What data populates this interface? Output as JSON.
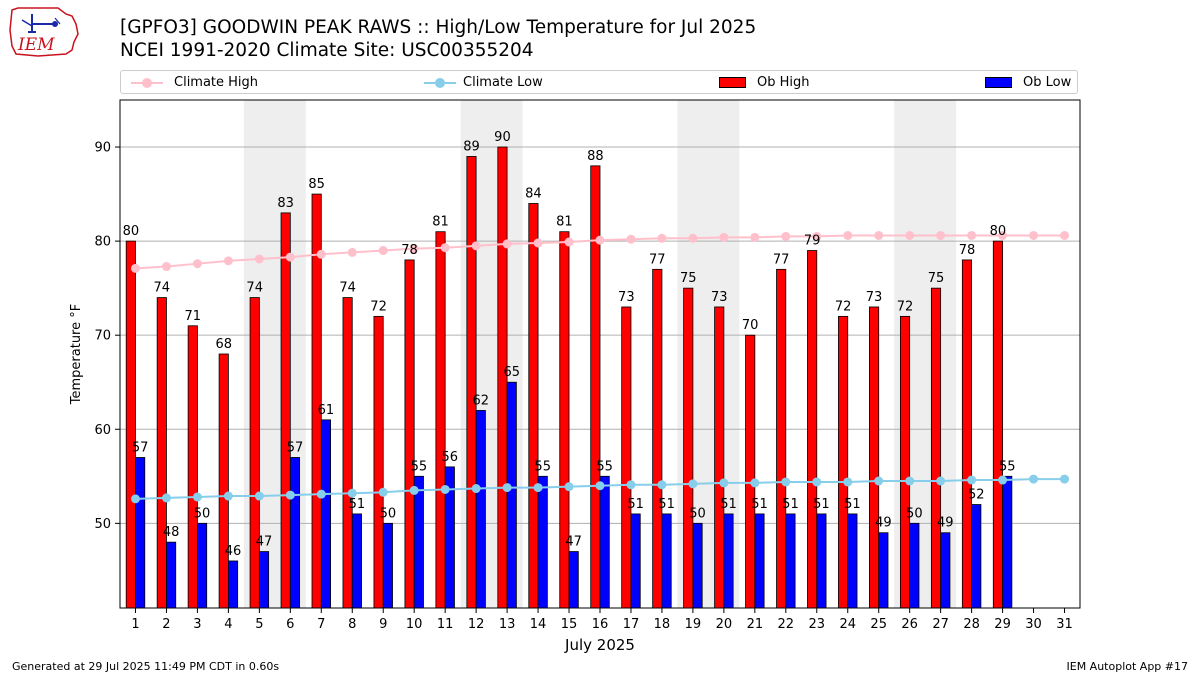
{
  "header": {
    "title_line1": "[GPFO3] GOODWIN PEAK RAWS :: High/Low Temperature for Jul 2025",
    "title_line2": "NCEI 1991-2020 Climate Site: USC00355204",
    "logo_text": "IEM"
  },
  "footer": {
    "generated": "Generated at 29 Jul 2025 11:49 PM CDT in 0.60s",
    "app": "IEM Autoplot App #17"
  },
  "colors": {
    "ob_high": "#ff0000",
    "ob_low": "#0000ff",
    "climate_high": "#ffc0cb",
    "climate_low": "#87ceeb",
    "weekend_band": "#eeeeee",
    "grid": "#b0b0b0"
  },
  "chart_data": {
    "type": "bar",
    "xlabel": "July 2025",
    "ylabel": "Temperature °F",
    "ylim": [
      41,
      95
    ],
    "yticks": [
      50,
      60,
      70,
      80,
      90
    ],
    "xlim": [
      0.5,
      31.5
    ],
    "grid": "horizontal",
    "legend": "top",
    "categories": [
      "1",
      "2",
      "3",
      "4",
      "5",
      "6",
      "7",
      "8",
      "9",
      "10",
      "11",
      "12",
      "13",
      "14",
      "15",
      "16",
      "17",
      "18",
      "19",
      "20",
      "21",
      "22",
      "23",
      "24",
      "25",
      "26",
      "27",
      "28",
      "29",
      "30",
      "31"
    ],
    "shaded_days": [
      [
        5,
        6
      ],
      [
        12,
        13
      ],
      [
        19,
        20
      ],
      [
        26,
        27
      ]
    ],
    "series": [
      {
        "name": "Ob High",
        "kind": "bar",
        "offset": -0.15,
        "values": [
          80,
          74,
          71,
          68,
          74,
          83,
          85,
          74,
          72,
          78,
          81,
          89,
          90,
          84,
          81,
          88,
          73,
          77,
          75,
          73,
          70,
          77,
          79,
          72,
          73,
          72,
          75,
          78,
          80,
          null,
          null
        ]
      },
      {
        "name": "Ob Low",
        "kind": "bar",
        "offset": 0.15,
        "values": [
          57,
          48,
          50,
          46,
          47,
          57,
          61,
          51,
          50,
          55,
          56,
          62,
          65,
          55,
          47,
          55,
          51,
          51,
          50,
          51,
          51,
          51,
          51,
          51,
          49,
          50,
          49,
          52,
          55,
          null,
          null
        ]
      },
      {
        "name": "Climate High",
        "kind": "line",
        "values": [
          77.1,
          77.3,
          77.6,
          77.9,
          78.1,
          78.3,
          78.6,
          78.8,
          79.0,
          79.2,
          79.3,
          79.5,
          79.7,
          79.8,
          79.9,
          80.1,
          80.2,
          80.3,
          80.3,
          80.4,
          80.4,
          80.5,
          80.5,
          80.6,
          80.6,
          80.6,
          80.6,
          80.6,
          80.6,
          80.6,
          80.6
        ]
      },
      {
        "name": "Climate Low",
        "kind": "line",
        "values": [
          52.6,
          52.7,
          52.8,
          52.9,
          52.9,
          53.0,
          53.1,
          53.2,
          53.3,
          53.5,
          53.6,
          53.7,
          53.8,
          53.8,
          53.9,
          54.0,
          54.1,
          54.1,
          54.2,
          54.3,
          54.3,
          54.4,
          54.4,
          54.4,
          54.5,
          54.5,
          54.5,
          54.6,
          54.6,
          54.7,
          54.7
        ]
      }
    ]
  }
}
